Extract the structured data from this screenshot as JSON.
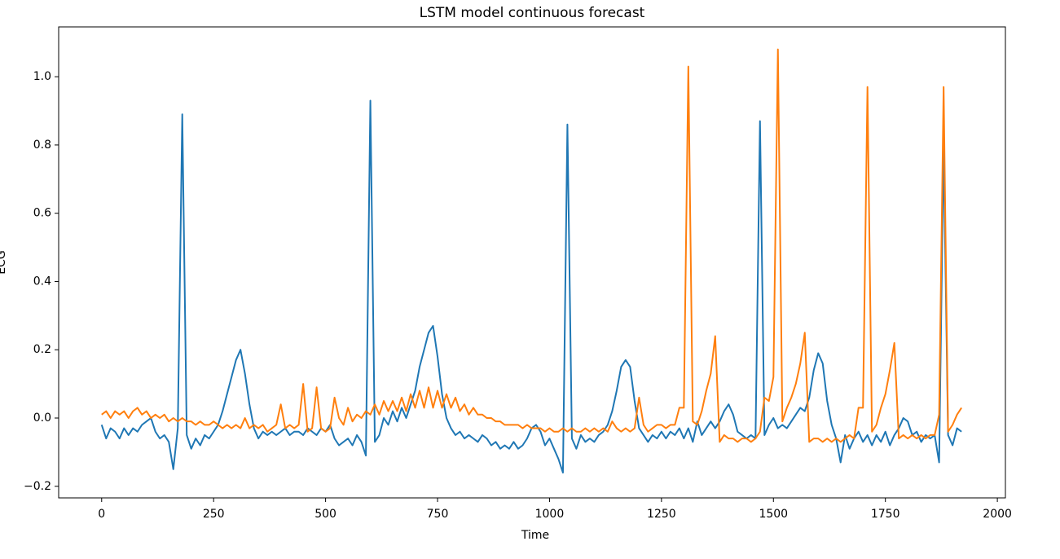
{
  "chart_data": {
    "type": "line",
    "title": "LSTM model continuous forecast",
    "xlabel": "Time",
    "ylabel": "ECG",
    "xlim": [
      -96,
      2018
    ],
    "ylim": [
      -0.234,
      1.146
    ],
    "xticks": [
      0,
      250,
      500,
      750,
      1000,
      1250,
      1500,
      1750,
      2000
    ],
    "yticks": [
      {
        "value": -0.2,
        "label": "−0.2"
      },
      {
        "value": 0,
        "label": "0.0"
      },
      0.2,
      0.4,
      0.6,
      0.8,
      {
        "value": 1,
        "label": "1.0"
      }
    ],
    "x": [
      0,
      10,
      20,
      30,
      40,
      50,
      60,
      70,
      80,
      90,
      100,
      110,
      120,
      130,
      140,
      150,
      160,
      170,
      180,
      190,
      200,
      210,
      220,
      230,
      240,
      250,
      260,
      270,
      280,
      290,
      300,
      310,
      320,
      330,
      340,
      350,
      360,
      370,
      380,
      390,
      400,
      410,
      420,
      430,
      440,
      450,
      460,
      470,
      480,
      490,
      500,
      510,
      520,
      530,
      540,
      550,
      560,
      570,
      580,
      590,
      600,
      610,
      620,
      630,
      640,
      650,
      660,
      670,
      680,
      690,
      700,
      710,
      720,
      730,
      740,
      750,
      760,
      770,
      780,
      790,
      800,
      810,
      820,
      830,
      840,
      850,
      860,
      870,
      880,
      890,
      900,
      910,
      920,
      930,
      940,
      950,
      960,
      970,
      980,
      990,
      1000,
      1010,
      1020,
      1030,
      1040,
      1050,
      1060,
      1070,
      1080,
      1090,
      1100,
      1110,
      1120,
      1130,
      1140,
      1150,
      1160,
      1170,
      1180,
      1190,
      1200,
      1210,
      1220,
      1230,
      1240,
      1250,
      1260,
      1270,
      1280,
      1290,
      1300,
      1310,
      1320,
      1330,
      1340,
      1350,
      1360,
      1370,
      1380,
      1390,
      1400,
      1410,
      1420,
      1430,
      1440,
      1450,
      1460,
      1470,
      1480,
      1490,
      1500,
      1510,
      1520,
      1530,
      1540,
      1550,
      1560,
      1570,
      1580,
      1590,
      1600,
      1610,
      1620,
      1630,
      1640,
      1650,
      1660,
      1670,
      1680,
      1690,
      1700,
      1710,
      1720,
      1730,
      1740,
      1750,
      1760,
      1770,
      1780,
      1790,
      1800,
      1810,
      1820,
      1830,
      1840,
      1850,
      1860,
      1870,
      1880,
      1890,
      1900,
      1910,
      1920
    ],
    "series": [
      {
        "color": "#1f77b4",
        "values": [
          -0.02,
          -0.06,
          -0.03,
          -0.04,
          -0.06,
          -0.03,
          -0.05,
          -0.03,
          -0.04,
          -0.02,
          -0.01,
          0.0,
          -0.04,
          -0.06,
          -0.05,
          -0.07,
          -0.15,
          -0.03,
          0.89,
          -0.05,
          -0.09,
          -0.06,
          -0.08,
          -0.05,
          -0.06,
          -0.04,
          -0.02,
          0.02,
          0.07,
          0.12,
          0.17,
          0.2,
          0.13,
          0.04,
          -0.03,
          -0.06,
          -0.04,
          -0.05,
          -0.04,
          -0.05,
          -0.04,
          -0.03,
          -0.05,
          -0.04,
          -0.04,
          -0.05,
          -0.03,
          -0.04,
          -0.05,
          -0.03,
          -0.04,
          -0.02,
          -0.06,
          -0.08,
          -0.07,
          -0.06,
          -0.08,
          -0.05,
          -0.07,
          -0.11,
          0.93,
          -0.07,
          -0.05,
          0.0,
          -0.02,
          0.02,
          -0.01,
          0.03,
          0.0,
          0.04,
          0.08,
          0.15,
          0.2,
          0.25,
          0.27,
          0.18,
          0.07,
          0.0,
          -0.03,
          -0.05,
          -0.04,
          -0.06,
          -0.05,
          -0.06,
          -0.07,
          -0.05,
          -0.06,
          -0.08,
          -0.07,
          -0.09,
          -0.08,
          -0.09,
          -0.07,
          -0.09,
          -0.08,
          -0.06,
          -0.03,
          -0.02,
          -0.04,
          -0.08,
          -0.06,
          -0.09,
          -0.12,
          -0.16,
          0.86,
          -0.06,
          -0.09,
          -0.05,
          -0.07,
          -0.06,
          -0.07,
          -0.05,
          -0.04,
          -0.02,
          0.02,
          0.08,
          0.15,
          0.17,
          0.15,
          0.05,
          -0.03,
          -0.05,
          -0.07,
          -0.05,
          -0.06,
          -0.04,
          -0.06,
          -0.04,
          -0.05,
          -0.03,
          -0.06,
          -0.03,
          -0.07,
          -0.01,
          -0.05,
          -0.03,
          -0.01,
          -0.03,
          -0.01,
          0.02,
          0.04,
          0.01,
          -0.04,
          -0.05,
          -0.06,
          -0.05,
          -0.06,
          0.87,
          -0.05,
          -0.02,
          0.0,
          -0.03,
          -0.02,
          -0.03,
          -0.01,
          0.01,
          0.03,
          0.02,
          0.06,
          0.14,
          0.19,
          0.16,
          0.05,
          -0.02,
          -0.06,
          -0.13,
          -0.05,
          -0.09,
          -0.06,
          -0.04,
          -0.07,
          -0.05,
          -0.08,
          -0.05,
          -0.07,
          -0.04,
          -0.08,
          -0.05,
          -0.03,
          0.0,
          -0.01,
          -0.05,
          -0.04,
          -0.07,
          -0.05,
          -0.06,
          -0.05,
          -0.13,
          0.8,
          -0.05,
          -0.08,
          -0.03,
          -0.04
        ]
      },
      {
        "color": "#ff7f0e",
        "values": [
          0.01,
          0.02,
          0.0,
          0.02,
          0.01,
          0.02,
          0.0,
          0.02,
          0.03,
          0.01,
          0.02,
          0.0,
          0.01,
          0.0,
          0.01,
          -0.01,
          0.0,
          -0.01,
          0.0,
          -0.01,
          -0.01,
          -0.02,
          -0.01,
          -0.02,
          -0.02,
          -0.01,
          -0.02,
          -0.03,
          -0.02,
          -0.03,
          -0.02,
          -0.03,
          0.0,
          -0.03,
          -0.02,
          -0.03,
          -0.02,
          -0.04,
          -0.03,
          -0.02,
          0.04,
          -0.03,
          -0.02,
          -0.03,
          -0.02,
          0.1,
          -0.04,
          -0.03,
          0.09,
          -0.03,
          -0.04,
          -0.03,
          0.06,
          0.0,
          -0.02,
          0.03,
          -0.01,
          0.01,
          0.0,
          0.02,
          0.01,
          0.04,
          0.01,
          0.05,
          0.02,
          0.05,
          0.02,
          0.06,
          0.02,
          0.07,
          0.03,
          0.08,
          0.03,
          0.09,
          0.03,
          0.08,
          0.03,
          0.07,
          0.03,
          0.06,
          0.02,
          0.04,
          0.01,
          0.03,
          0.01,
          0.01,
          0.0,
          0.0,
          -0.01,
          -0.01,
          -0.02,
          -0.02,
          -0.02,
          -0.02,
          -0.03,
          -0.02,
          -0.03,
          -0.03,
          -0.03,
          -0.04,
          -0.03,
          -0.04,
          -0.04,
          -0.03,
          -0.04,
          -0.03,
          -0.04,
          -0.04,
          -0.03,
          -0.04,
          -0.03,
          -0.04,
          -0.03,
          -0.04,
          -0.01,
          -0.03,
          -0.04,
          -0.03,
          -0.04,
          -0.03,
          0.06,
          -0.02,
          -0.04,
          -0.03,
          -0.02,
          -0.02,
          -0.03,
          -0.02,
          -0.02,
          0.03,
          0.03,
          1.03,
          -0.01,
          -0.02,
          0.02,
          0.08,
          0.13,
          0.24,
          -0.07,
          -0.05,
          -0.06,
          -0.06,
          -0.07,
          -0.06,
          -0.06,
          -0.07,
          -0.06,
          -0.04,
          0.06,
          0.05,
          0.12,
          1.08,
          -0.01,
          0.03,
          0.06,
          0.1,
          0.16,
          0.25,
          -0.07,
          -0.06,
          -0.06,
          -0.07,
          -0.06,
          -0.07,
          -0.06,
          -0.07,
          -0.06,
          -0.05,
          -0.06,
          0.03,
          0.03,
          0.97,
          -0.04,
          -0.02,
          0.03,
          0.07,
          0.14,
          0.22,
          -0.06,
          -0.05,
          -0.06,
          -0.05,
          -0.06,
          -0.05,
          -0.06,
          -0.05,
          -0.05,
          0.01,
          0.97,
          -0.04,
          -0.02,
          0.01,
          0.03
        ]
      }
    ]
  }
}
